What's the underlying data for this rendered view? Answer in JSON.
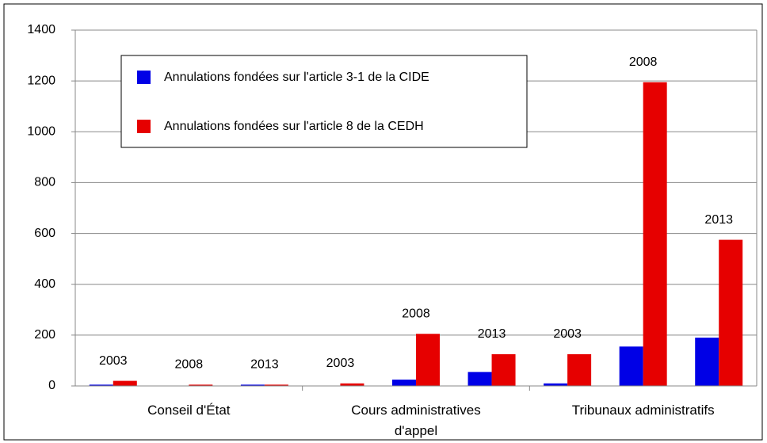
{
  "chart_data": {
    "type": "bar",
    "categories": [
      "2003",
      "2008",
      "2013",
      "2003",
      "2008",
      "2013",
      "2003",
      "2008",
      "2013"
    ],
    "groups": [
      "Conseil d'État",
      "Cours administratives d'appel",
      "Tribunaux administratifs"
    ],
    "series": [
      {
        "name": "Annulations fondées sur l'article 3-1 de la CIDE",
        "color": "#0000e6",
        "values": [
          5,
          0,
          5,
          0,
          25,
          55,
          10,
          155,
          190
        ]
      },
      {
        "name": "Annulations fondées sur l'article 8 de la CEDH",
        "color": "#e60000",
        "values": [
          20,
          5,
          5,
          10,
          205,
          125,
          125,
          1195,
          575
        ]
      }
    ],
    "ylim": [
      0,
      1400
    ],
    "yticks": [
      0,
      200,
      400,
      600,
      800,
      1000,
      1200,
      1400
    ],
    "grid": true
  }
}
